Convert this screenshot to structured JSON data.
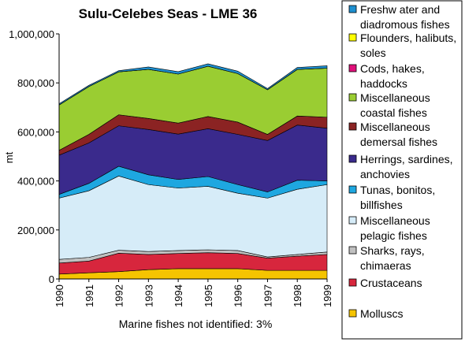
{
  "chart_data": {
    "type": "area",
    "stacked": true,
    "title": "Sulu-Celebes Seas - LME 36",
    "ylabel": "mt",
    "xlabel": "",
    "note": "Marine fishes not identified: 3%",
    "ylim": [
      0,
      1000000
    ],
    "yticks": [
      "0",
      "200,000",
      "400,000",
      "600,000",
      "800,000",
      "1,000,000"
    ],
    "ytick_values": [
      0,
      200000,
      400000,
      600000,
      800000,
      1000000
    ],
    "x": [
      "1990",
      "1991",
      "1992",
      "1993",
      "1994",
      "1995",
      "1996",
      "1997",
      "1998",
      "1999"
    ],
    "grid": false,
    "legend_position": "right",
    "series": [
      {
        "name": "Molluscs",
        "color": "#f5c400",
        "values": [
          20000,
          25000,
          30000,
          38000,
          42000,
          42000,
          42000,
          35000,
          35000,
          35000
        ]
      },
      {
        "name": "Crustaceans",
        "color": "#d7263d",
        "values": [
          45000,
          48000,
          75000,
          62000,
          62000,
          65000,
          62000,
          50000,
          58000,
          65000
        ]
      },
      {
        "name": "Sharks, rays, chimaeras",
        "color": "#c0c0c0",
        "values": [
          15000,
          15000,
          12000,
          12000,
          12000,
          12000,
          12000,
          5000,
          7000,
          10000
        ]
      },
      {
        "name": "Miscellaneous pelagic fishes",
        "color": "#d6ecf8",
        "values": [
          250000,
          272000,
          303000,
          273000,
          255000,
          259000,
          234000,
          240000,
          266000,
          275000
        ]
      },
      {
        "name": "Tunas, bonitos, billfishes",
        "color": "#1ea7e0",
        "values": [
          15000,
          30000,
          40000,
          40000,
          35000,
          40000,
          35000,
          25000,
          37000,
          15000
        ]
      },
      {
        "name": "Herrings, sardines, anchovies",
        "color": "#3a2a8c",
        "values": [
          160000,
          165000,
          165000,
          185000,
          185000,
          195000,
          205000,
          210000,
          225000,
          215000
        ]
      },
      {
        "name": "Miscellaneous demersal fishes",
        "color": "#8b2323",
        "values": [
          20000,
          35000,
          45000,
          45000,
          45000,
          50000,
          50000,
          25000,
          37000,
          45000
        ]
      },
      {
        "name": "Cods, hakes, haddocks",
        "color": "#e0107a",
        "values": [
          0,
          0,
          0,
          0,
          0,
          0,
          0,
          0,
          0,
          0
        ]
      },
      {
        "name": "Miscellaneous coastal fishes",
        "color": "#9acd32",
        "values": [
          185000,
          195000,
          175000,
          200000,
          200000,
          205000,
          198000,
          182000,
          190000,
          200000
        ]
      },
      {
        "name": "Flounders, halibuts, soles",
        "color": "#ffff00",
        "values": [
          0,
          0,
          0,
          0,
          0,
          0,
          0,
          0,
          0,
          0
        ]
      },
      {
        "name": "Freshwater and diadromous fishes",
        "color": "#1e90d0",
        "values": [
          5000,
          5000,
          5000,
          10000,
          10000,
          10000,
          10000,
          5000,
          8000,
          10000
        ]
      }
    ],
    "legend": [
      {
        "lines": [
          "Freshw ater and",
          "diadromous fishes"
        ],
        "color": "#1e90d0"
      },
      {
        "lines": [
          "Flounders, halibuts,",
          "soles"
        ],
        "color": "#ffff00"
      },
      {
        "lines": [
          "Cods, hakes,",
          "haddocks"
        ],
        "color": "#e0107a"
      },
      {
        "lines": [
          "Miscellaneous",
          "coastal fishes"
        ],
        "color": "#9acd32"
      },
      {
        "lines": [
          "Miscellaneous",
          "demersal fishes"
        ],
        "color": "#8b2323"
      },
      {
        "lines": [
          "Herrings, sardines,",
          "anchovies"
        ],
        "color": "#3a2a8c"
      },
      {
        "lines": [
          "Tunas, bonitos,",
          "billfishes"
        ],
        "color": "#1ea7e0"
      },
      {
        "lines": [
          "Miscellaneous",
          "pelagic fishes"
        ],
        "color": "#d6ecf8"
      },
      {
        "lines": [
          "Sharks, rays,",
          "chimaeras"
        ],
        "color": "#c0c0c0"
      },
      {
        "lines": [
          "Crustaceans"
        ],
        "color": "#d7263d"
      },
      {
        "lines": [
          "Molluscs"
        ],
        "color": "#f5c400"
      }
    ]
  }
}
